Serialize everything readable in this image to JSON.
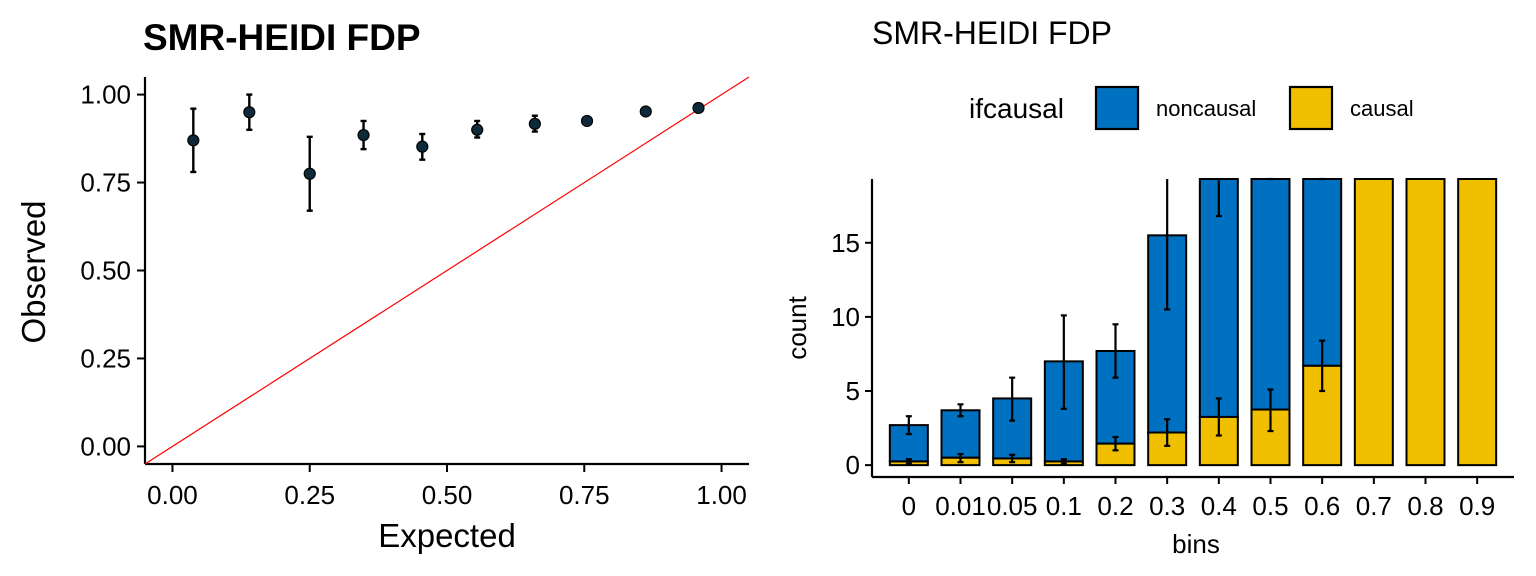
{
  "chart_data": [
    {
      "type": "scatter",
      "title": "SMR-HEIDI FDP",
      "xlabel": "Expected",
      "ylabel": "Observed",
      "xlim": [
        -0.05,
        1.05
      ],
      "ylim": [
        -0.05,
        1.05
      ],
      "xticks": [
        "0.00",
        "0.25",
        "0.50",
        "0.75",
        "1.00"
      ],
      "yticks": [
        "0.00",
        "0.25",
        "0.50",
        "0.75",
        "1.00"
      ],
      "reference_line": {
        "slope": 1,
        "intercept": 0,
        "color": "#ff0000"
      },
      "grid": false,
      "points": [
        {
          "x": 0.038,
          "y": 0.87,
          "ylo": 0.78,
          "yhi": 0.96
        },
        {
          "x": 0.14,
          "y": 0.95,
          "ylo": 0.9,
          "yhi": 1.0
        },
        {
          "x": 0.25,
          "y": 0.775,
          "ylo": 0.67,
          "yhi": 0.88
        },
        {
          "x": 0.348,
          "y": 0.885,
          "ylo": 0.845,
          "yhi": 0.925
        },
        {
          "x": 0.455,
          "y": 0.852,
          "ylo": 0.815,
          "yhi": 0.888
        },
        {
          "x": 0.555,
          "y": 0.9,
          "ylo": 0.878,
          "yhi": 0.925
        },
        {
          "x": 0.66,
          "y": 0.917,
          "ylo": 0.895,
          "yhi": 0.94
        },
        {
          "x": 0.755,
          "y": 0.925,
          "ylo": 0.92,
          "yhi": 0.93
        },
        {
          "x": 0.862,
          "y": 0.952,
          "ylo": 0.948,
          "yhi": 0.956
        },
        {
          "x": 0.958,
          "y": 0.962,
          "ylo": 0.958,
          "yhi": 0.966
        }
      ],
      "point_color": "#0d2a3a"
    },
    {
      "type": "bar",
      "stacked": true,
      "title": "SMR-HEIDI FDP",
      "xlabel": "bins",
      "ylabel": "count",
      "categories": [
        "0",
        "0.01",
        "0.05",
        "0.1",
        "0.2",
        "0.3",
        "0.4",
        "0.5",
        "0.6",
        "0.7",
        "0.8",
        "0.9"
      ],
      "ylim": [
        -0.8,
        19.3
      ],
      "yticks": [
        "0",
        "5",
        "10",
        "15"
      ],
      "legend": {
        "title": "ifcausal",
        "position": "top"
      },
      "grid": false,
      "series": [
        {
          "name": "noncausal",
          "color": "#0070c0",
          "top": [
            2.7,
            3.7,
            4.5,
            7.0,
            7.7,
            15.5,
            19.3,
            19.3,
            19.3,
            0,
            0,
            0
          ],
          "err_lo": [
            2.1,
            3.3,
            3.0,
            3.8,
            5.9,
            10.5,
            16.8,
            19.3,
            19.3,
            null,
            null,
            null
          ],
          "err_hi": [
            3.3,
            4.1,
            5.9,
            10.1,
            9.5,
            19.3,
            19.3,
            19.3,
            19.3,
            null,
            null,
            null
          ]
        },
        {
          "name": "causal",
          "color": "#efbf00",
          "values": [
            0.25,
            0.5,
            0.45,
            0.25,
            1.45,
            2.2,
            3.25,
            3.75,
            6.7,
            19.3,
            19.3,
            19.3
          ],
          "err_lo": [
            0.1,
            0.2,
            0.2,
            0.1,
            1.0,
            1.3,
            2.0,
            2.3,
            5.0,
            null,
            null,
            null
          ],
          "err_hi": [
            0.4,
            0.75,
            0.7,
            0.4,
            1.9,
            3.1,
            4.5,
            5.1,
            8.4,
            null,
            null,
            null
          ]
        }
      ]
    }
  ]
}
